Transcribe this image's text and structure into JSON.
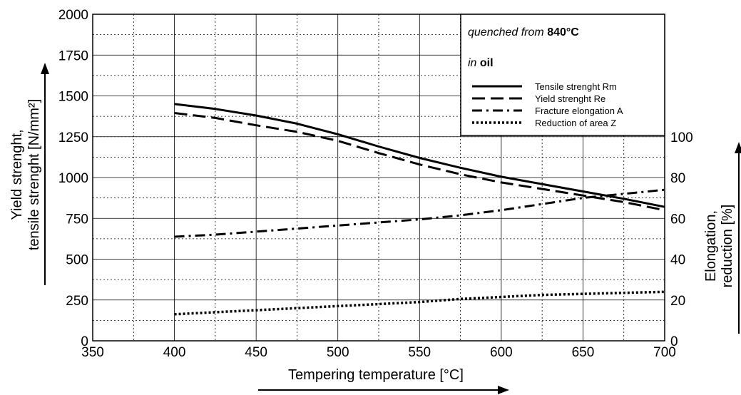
{
  "chart_data": {
    "type": "line",
    "x": [
      400,
      425,
      450,
      475,
      500,
      525,
      550,
      575,
      600,
      625,
      650,
      675,
      700
    ],
    "xlabel": "Tempering temperature [°C]",
    "xlim": [
      350,
      700
    ],
    "xticks": [
      350,
      400,
      450,
      500,
      550,
      600,
      650,
      700
    ],
    "ylabel_left_line1": "Yield strenght,",
    "ylabel_left_line2": "tensile strenght [N/mm²]",
    "ylim_left": [
      0,
      2000
    ],
    "yticks_left": [
      0,
      250,
      500,
      750,
      1000,
      1250,
      1500,
      1750,
      2000
    ],
    "ylabel_right_line1": "Elongation,",
    "ylabel_right_line2": "reduction [%]",
    "ylim_right": [
      0,
      160
    ],
    "yticks_right": [
      0,
      20,
      40,
      60,
      80,
      100
    ],
    "grid": true,
    "series": [
      {
        "name": "Tensile strenght Rm",
        "axis": "left",
        "style": "solid",
        "values": [
          1450,
          1420,
          1380,
          1330,
          1265,
          1190,
          1120,
          1060,
          1005,
          960,
          915,
          870,
          820
        ]
      },
      {
        "name": "Yield strenght Re",
        "axis": "left",
        "style": "dashed",
        "values": [
          1395,
          1365,
          1320,
          1280,
          1225,
          1150,
          1080,
          1020,
          970,
          930,
          890,
          850,
          800
        ]
      },
      {
        "name": "Fracture elongation A",
        "axis": "right",
        "style": "dashdot",
        "values": [
          51,
          52,
          53.5,
          55,
          56.5,
          58,
          59.5,
          61.5,
          64,
          67,
          70,
          72,
          74
        ]
      },
      {
        "name": "Reduction of area Z",
        "axis": "right",
        "style": "dotted",
        "values": [
          13,
          14,
          15,
          16,
          17,
          18,
          19,
          20.5,
          21.5,
          22.5,
          23,
          23.5,
          24
        ]
      }
    ],
    "legend": {
      "position": "top-right",
      "note1_prefix": "quenched from ",
      "note1_value": "840°C",
      "note2_prefix": "in ",
      "note2_value": "oil"
    }
  }
}
